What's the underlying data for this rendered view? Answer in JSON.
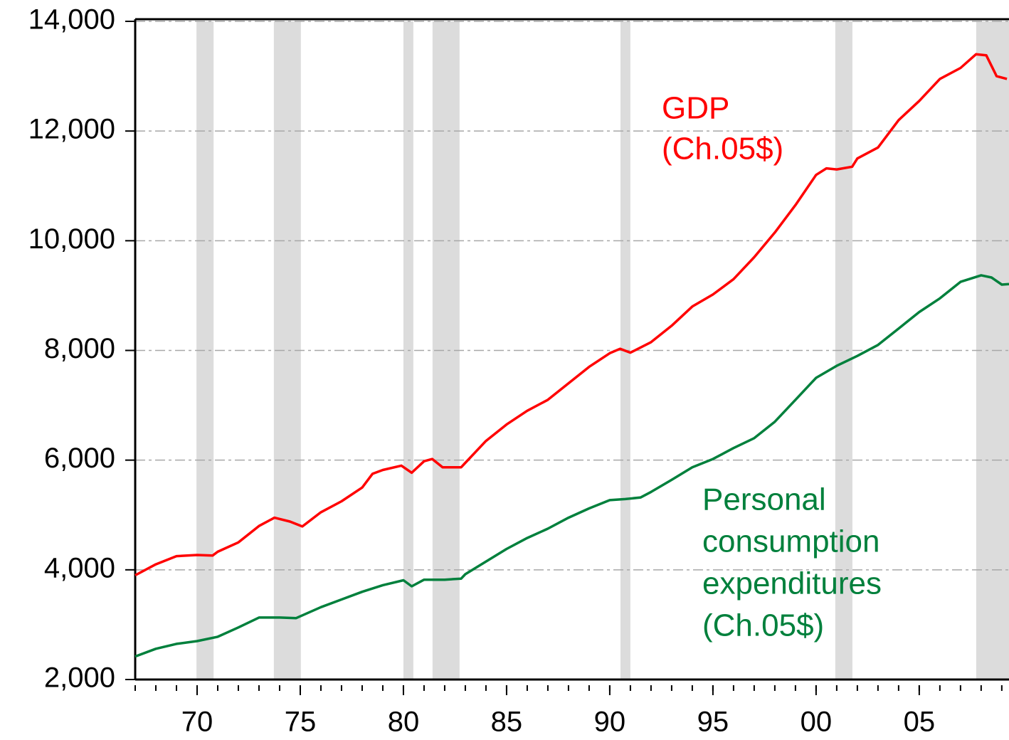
{
  "chart_data": {
    "type": "line",
    "xlim": [
      1967,
      2009.35
    ],
    "ylim": [
      2000,
      14000
    ],
    "xticks": [
      {
        "value": 1970,
        "label": "70"
      },
      {
        "value": 1975,
        "label": "75"
      },
      {
        "value": 1980,
        "label": "80"
      },
      {
        "value": 1985,
        "label": "85"
      },
      {
        "value": 1990,
        "label": "90"
      },
      {
        "value": 1995,
        "label": "95"
      },
      {
        "value": 2000,
        "label": "00"
      },
      {
        "value": 2005,
        "label": "05"
      }
    ],
    "xminorticks": [
      1967,
      1968,
      1969,
      1970,
      1971,
      1972,
      1973,
      1974,
      1975,
      1976,
      1977,
      1978,
      1979,
      1980,
      1981,
      1982,
      1983,
      1984,
      1985,
      1986,
      1987,
      1988,
      1989,
      1990,
      1991,
      1992,
      1993,
      1994,
      1995,
      1996,
      1997,
      1998,
      1999,
      2000,
      2001,
      2002,
      2003,
      2004,
      2005,
      2006,
      2007,
      2008,
      2009
    ],
    "yticks": [
      {
        "value": 2000,
        "label": "2,000"
      },
      {
        "value": 4000,
        "label": "4,000"
      },
      {
        "value": 6000,
        "label": "6,000"
      },
      {
        "value": 8000,
        "label": "8,000"
      },
      {
        "value": 10000,
        "label": "10,000"
      },
      {
        "value": 12000,
        "label": "12,000"
      },
      {
        "value": 14000,
        "label": "14,000"
      }
    ],
    "grid": true,
    "recessions": [
      [
        1969.97,
        1970.8
      ],
      [
        1973.72,
        1975.03
      ],
      [
        1980.0,
        1980.48
      ],
      [
        1981.41,
        1982.72
      ],
      [
        1990.52,
        1991.0
      ],
      [
        2000.93,
        2001.76
      ],
      [
        2007.76,
        2009.35
      ]
    ],
    "recession_color": "#dcdcdc",
    "series": [
      {
        "color": "#ff0000",
        "label_lines": [
          "GDP",
          "(Ch.05$)"
        ],
        "x": [
          1967,
          1968,
          1969,
          1970,
          1970.75,
          1971,
          1972,
          1973,
          1973.75,
          1974.5,
          1975.1,
          1976,
          1977,
          1978,
          1978.5,
          1979,
          1979.9,
          1980.4,
          1981,
          1981.4,
          1981.9,
          1982.8,
          1983,
          1984,
          1985,
          1986,
          1987,
          1988,
          1989,
          1990,
          1990.5,
          1991,
          1992,
          1993,
          1994,
          1995,
          1996,
          1997,
          1998,
          1999,
          2000,
          2000.5,
          2001,
          2001.75,
          2002,
          2003,
          2004,
          2005,
          2006,
          2007,
          2007.75,
          2008.25,
          2008.75,
          2009.25
        ],
        "values": [
          3900,
          4100,
          4250,
          4270,
          4260,
          4330,
          4500,
          4800,
          4950,
          4880,
          4790,
          5050,
          5250,
          5500,
          5750,
          5820,
          5900,
          5770,
          5980,
          6020,
          5870,
          5870,
          5950,
          6350,
          6650,
          6900,
          7100,
          7400,
          7700,
          7950,
          8030,
          7960,
          8150,
          8450,
          8800,
          9020,
          9300,
          9700,
          10150,
          10650,
          11200,
          11320,
          11300,
          11350,
          11500,
          11700,
          12200,
          12550,
          12950,
          13150,
          13400,
          13380,
          13000,
          12950
        ]
      },
      {
        "color": "#00803c",
        "label_lines": [
          "Personal",
          "consumption",
          "expenditures",
          "(Ch.05$)"
        ],
        "x": [
          1967,
          1968,
          1969,
          1970,
          1971,
          1972,
          1973,
          1974,
          1974.8,
          1976,
          1977,
          1978,
          1979,
          1980,
          1980.4,
          1981,
          1982,
          1982.8,
          1983,
          1984,
          1985,
          1986,
          1987,
          1988,
          1989,
          1990,
          1990.75,
          1991.5,
          1992,
          1993,
          1994,
          1995,
          1996,
          1997,
          1998,
          1999,
          2000,
          2001,
          2002,
          2003,
          2004,
          2005,
          2006,
          2007,
          2008,
          2008.5,
          2009,
          2009.35
        ],
        "values": [
          2420,
          2560,
          2650,
          2700,
          2780,
          2950,
          3130,
          3130,
          3120,
          3320,
          3460,
          3600,
          3720,
          3810,
          3700,
          3820,
          3820,
          3840,
          3920,
          4150,
          4380,
          4580,
          4750,
          4950,
          5120,
          5270,
          5290,
          5320,
          5420,
          5640,
          5870,
          6020,
          6220,
          6400,
          6700,
          7100,
          7500,
          7720,
          7900,
          8100,
          8400,
          8700,
          8950,
          9250,
          9370,
          9330,
          9200,
          9210
        ]
      }
    ]
  }
}
